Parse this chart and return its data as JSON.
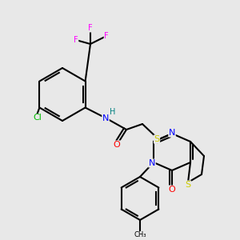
{
  "bg_color": "#e8e8e8",
  "atom_colors": {
    "F": "#ff00ff",
    "Cl": "#00bb00",
    "N": "#0000ff",
    "O": "#ff0000",
    "S": "#cccc00",
    "H": "#008080",
    "C": "#000000"
  },
  "bond_color": "#000000",
  "bond_width": 1.5,
  "font_size": 8,
  "figsize": [
    3.0,
    3.0
  ],
  "dpi": 100
}
